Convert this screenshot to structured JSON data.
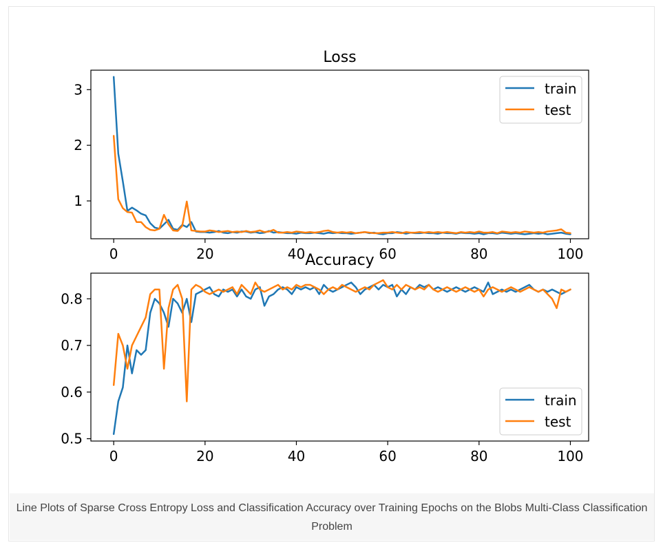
{
  "chart_data": [
    {
      "type": "line",
      "title": "Loss",
      "xlabel": "",
      "ylabel": "",
      "xlim": [
        -5,
        104
      ],
      "ylim": [
        0.32,
        3.35
      ],
      "xticks": [
        0,
        20,
        40,
        60,
        80,
        100
      ],
      "yticks": [
        1,
        2,
        3
      ],
      "grid": false,
      "legend_position": "top-right",
      "series": [
        {
          "name": "train",
          "color": "#1f77b4",
          "values": [
            3.23,
            1.85,
            1.35,
            0.82,
            0.88,
            0.83,
            0.77,
            0.74,
            0.6,
            0.52,
            0.5,
            0.58,
            0.66,
            0.5,
            0.48,
            0.57,
            0.53,
            0.62,
            0.45,
            0.44,
            0.44,
            0.43,
            0.44,
            0.46,
            0.43,
            0.42,
            0.44,
            0.43,
            0.45,
            0.45,
            0.43,
            0.44,
            0.42,
            0.43,
            0.46,
            0.43,
            0.44,
            0.43,
            0.42,
            0.42,
            0.41,
            0.43,
            0.42,
            0.42,
            0.43,
            0.42,
            0.41,
            0.43,
            0.42,
            0.43,
            0.42,
            0.42,
            0.41,
            0.42,
            0.43,
            0.44,
            0.42,
            0.43,
            0.41,
            0.4,
            0.42,
            0.42,
            0.44,
            0.43,
            0.41,
            0.43,
            0.42,
            0.42,
            0.43,
            0.42,
            0.42,
            0.41,
            0.43,
            0.42,
            0.42,
            0.41,
            0.43,
            0.42,
            0.42,
            0.41,
            0.42,
            0.4,
            0.42,
            0.42,
            0.41,
            0.43,
            0.42,
            0.41,
            0.42,
            0.41,
            0.4,
            0.41,
            0.42,
            0.41,
            0.42,
            0.4,
            0.41,
            0.42,
            0.43,
            0.41,
            0.4
          ]
        },
        {
          "name": "test",
          "color": "#ff7f0e",
          "values": [
            2.17,
            1.03,
            0.87,
            0.8,
            0.79,
            0.62,
            0.62,
            0.53,
            0.48,
            0.47,
            0.5,
            0.75,
            0.58,
            0.47,
            0.46,
            0.55,
            0.99,
            0.47,
            0.46,
            0.45,
            0.45,
            0.47,
            0.46,
            0.44,
            0.45,
            0.46,
            0.44,
            0.45,
            0.44,
            0.46,
            0.44,
            0.45,
            0.47,
            0.44,
            0.45,
            0.48,
            0.43,
            0.43,
            0.44,
            0.43,
            0.45,
            0.44,
            0.43,
            0.44,
            0.43,
            0.44,
            0.46,
            0.47,
            0.44,
            0.43,
            0.44,
            0.43,
            0.44,
            0.42,
            0.43,
            0.44,
            0.43,
            0.42,
            0.42,
            0.43,
            0.43,
            0.44,
            0.43,
            0.42,
            0.44,
            0.43,
            0.43,
            0.44,
            0.43,
            0.44,
            0.43,
            0.44,
            0.43,
            0.44,
            0.43,
            0.42,
            0.44,
            0.43,
            0.44,
            0.43,
            0.45,
            0.43,
            0.43,
            0.44,
            0.42,
            0.45,
            0.44,
            0.43,
            0.44,
            0.43,
            0.45,
            0.44,
            0.43,
            0.44,
            0.43,
            0.45,
            0.46,
            0.47,
            0.49,
            0.43,
            0.42
          ]
        }
      ]
    },
    {
      "type": "line",
      "title": "Accuracy",
      "xlabel": "",
      "ylabel": "",
      "xlim": [
        -5,
        104
      ],
      "ylim": [
        0.495,
        0.855
      ],
      "xticks": [
        0,
        20,
        40,
        60,
        80,
        100
      ],
      "yticks": [
        0.5,
        0.6,
        0.7,
        0.8
      ],
      "grid": false,
      "legend_position": "bottom-right",
      "series": [
        {
          "name": "train",
          "color": "#1f77b4",
          "values": [
            0.51,
            0.58,
            0.61,
            0.7,
            0.64,
            0.69,
            0.68,
            0.69,
            0.77,
            0.8,
            0.79,
            0.77,
            0.74,
            0.8,
            0.79,
            0.77,
            0.8,
            0.75,
            0.81,
            0.815,
            0.82,
            0.825,
            0.81,
            0.805,
            0.82,
            0.815,
            0.82,
            0.805,
            0.82,
            0.805,
            0.8,
            0.82,
            0.825,
            0.785,
            0.805,
            0.81,
            0.82,
            0.825,
            0.82,
            0.81,
            0.825,
            0.82,
            0.825,
            0.82,
            0.825,
            0.81,
            0.83,
            0.82,
            0.815,
            0.82,
            0.825,
            0.83,
            0.835,
            0.825,
            0.81,
            0.82,
            0.825,
            0.83,
            0.82,
            0.83,
            0.825,
            0.83,
            0.805,
            0.82,
            0.81,
            0.825,
            0.82,
            0.83,
            0.825,
            0.83,
            0.82,
            0.825,
            0.82,
            0.815,
            0.82,
            0.825,
            0.82,
            0.815,
            0.82,
            0.825,
            0.82,
            0.815,
            0.835,
            0.81,
            0.815,
            0.82,
            0.815,
            0.82,
            0.815,
            0.82,
            0.825,
            0.83,
            0.82,
            0.815,
            0.82,
            0.815,
            0.82,
            0.815,
            0.81,
            0.815,
            0.82
          ]
        },
        {
          "name": "test",
          "color": "#ff7f0e",
          "values": [
            0.615,
            0.725,
            0.7,
            0.65,
            0.7,
            0.72,
            0.74,
            0.76,
            0.81,
            0.82,
            0.82,
            0.65,
            0.78,
            0.82,
            0.83,
            0.8,
            0.58,
            0.82,
            0.83,
            0.825,
            0.815,
            0.81,
            0.815,
            0.82,
            0.815,
            0.82,
            0.825,
            0.81,
            0.83,
            0.82,
            0.81,
            0.835,
            0.82,
            0.815,
            0.82,
            0.825,
            0.83,
            0.82,
            0.825,
            0.82,
            0.83,
            0.825,
            0.83,
            0.83,
            0.825,
            0.82,
            0.81,
            0.82,
            0.825,
            0.82,
            0.83,
            0.825,
            0.82,
            0.815,
            0.82,
            0.825,
            0.82,
            0.83,
            0.835,
            0.84,
            0.825,
            0.82,
            0.83,
            0.82,
            0.83,
            0.825,
            0.82,
            0.825,
            0.82,
            0.83,
            0.82,
            0.815,
            0.82,
            0.825,
            0.82,
            0.815,
            0.82,
            0.825,
            0.82,
            0.815,
            0.82,
            0.805,
            0.82,
            0.825,
            0.82,
            0.815,
            0.82,
            0.825,
            0.82,
            0.815,
            0.82,
            0.825,
            0.82,
            0.815,
            0.82,
            0.81,
            0.8,
            0.78,
            0.82,
            0.815,
            0.82
          ]
        }
      ]
    }
  ],
  "caption": "Line Plots of Sparse Cross Entropy Loss and Classification Accuracy over Training Epochs on the Blobs Multi-Class Classification Problem"
}
